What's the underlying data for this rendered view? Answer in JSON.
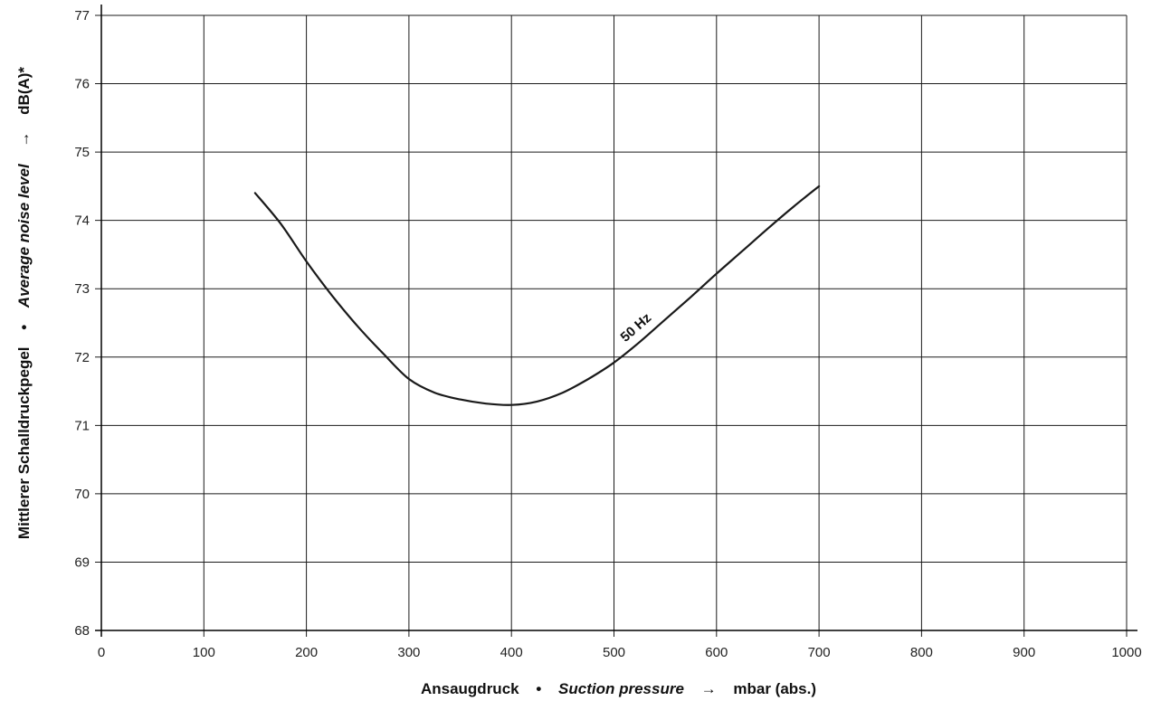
{
  "chart_data": {
    "type": "line",
    "title": "",
    "xlabel": {
      "de": "Ansaugdruck",
      "separator": "•",
      "en": "Suction pressure",
      "arrow": "→",
      "unit": "mbar (abs.)"
    },
    "ylabel": {
      "de": "Mittlerer Schalldruckpegel",
      "separator": "•",
      "en": "Average noise level",
      "arrow": "→",
      "unit": "dB(A)*"
    },
    "xlim": [
      0,
      1000
    ],
    "ylim": [
      68,
      77
    ],
    "xticks": [
      0,
      100,
      200,
      300,
      400,
      500,
      600,
      700,
      800,
      900,
      1000
    ],
    "yticks": [
      68,
      69,
      70,
      71,
      72,
      73,
      74,
      75,
      76,
      77
    ],
    "grid": true,
    "series": [
      {
        "name": "50 Hz",
        "color": "#1a1a1a",
        "x": [
          150,
          175,
          200,
          225,
          250,
          275,
          300,
          325,
          350,
          375,
          400,
          425,
          450,
          475,
          500,
          525,
          550,
          575,
          600,
          625,
          650,
          675,
          700
        ],
        "y": [
          74.4,
          73.95,
          73.4,
          72.9,
          72.45,
          72.05,
          71.68,
          71.48,
          71.38,
          71.32,
          71.3,
          71.35,
          71.48,
          71.68,
          71.92,
          72.22,
          72.55,
          72.88,
          73.22,
          73.55,
          73.88,
          74.2,
          74.5
        ]
      }
    ]
  }
}
